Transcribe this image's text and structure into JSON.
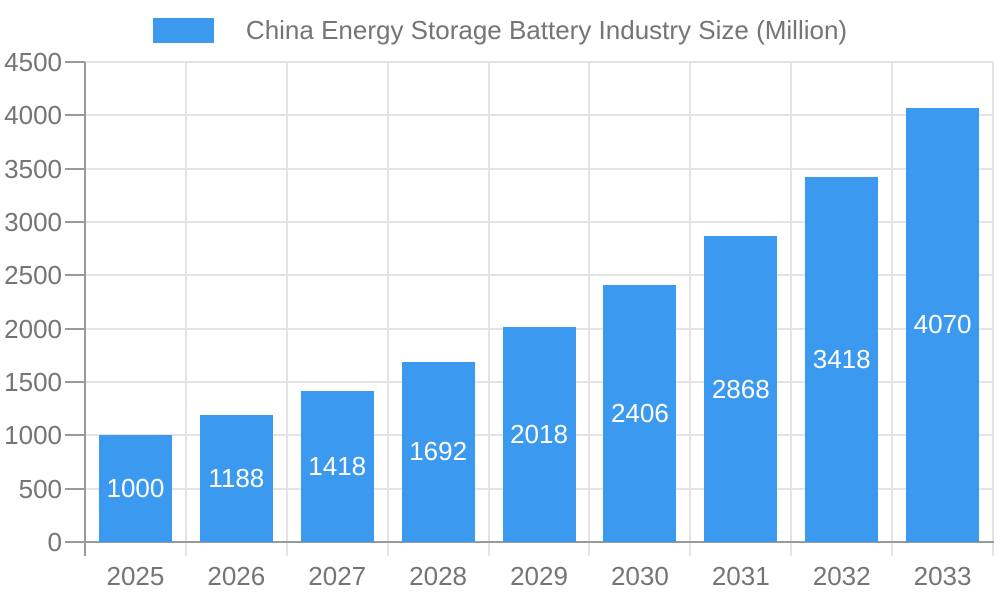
{
  "legend": {
    "label": "China Energy Storage Battery Industry Size (Million)"
  },
  "chart_data": {
    "type": "bar",
    "title": "China Energy Storage Battery Industry Size (Million)",
    "series_name": "China Energy Storage Battery Industry Size (Million)",
    "categories": [
      "2025",
      "2026",
      "2027",
      "2028",
      "2029",
      "2030",
      "2031",
      "2032",
      "2033"
    ],
    "values": [
      1000,
      1188,
      1418,
      1692,
      2018,
      2406,
      2868,
      3418,
      4070
    ],
    "bar_labels_shown": true,
    "xlabel": "",
    "ylabel": "",
    "ylim": [
      0,
      4500
    ],
    "y_ticks": [
      0,
      500,
      1000,
      1500,
      2000,
      2500,
      3000,
      3500,
      4000,
      4500
    ],
    "grid": true,
    "legend_position": "top"
  },
  "colors": {
    "bar": "#3B99F0",
    "bar_label": "#ffffff",
    "axis_text": "#757575",
    "grid_line": "#e4e4e4",
    "axis_line": "#9a9a9a",
    "background": "#ffffff"
  }
}
